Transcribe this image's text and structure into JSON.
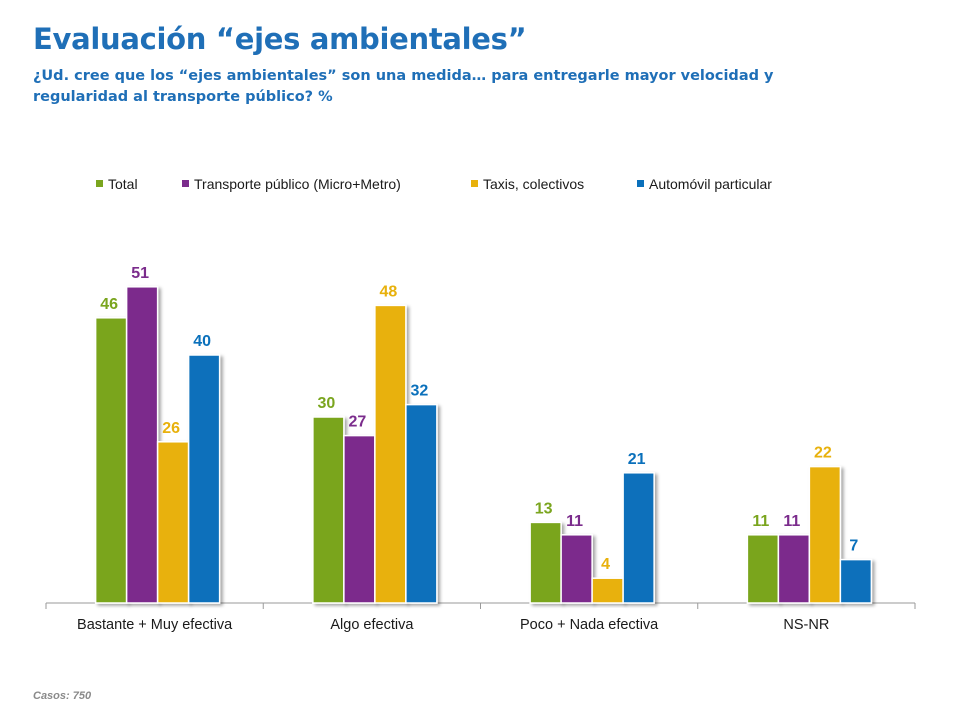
{
  "title": "Evaluación “ejes ambientales”",
  "subtitle": "¿Ud. cree que los “ejes ambientales” son una medida… para entregarle mayor velocidad y regularidad al transporte público? %",
  "footnote": "Casos:  750",
  "chart_data": {
    "type": "bar",
    "categories": [
      "Bastante + Muy efectiva",
      "Algo efectiva",
      "Poco + Nada efectiva",
      "NS-NR"
    ],
    "series": [
      {
        "name": "Total",
        "color": "#7aa51e",
        "values": [
          46,
          30,
          13,
          11
        ]
      },
      {
        "name": "Transporte público (Micro+Metro)",
        "color": "#7b2c8c",
        "values": [
          51,
          27,
          11,
          11
        ]
      },
      {
        "name": "Taxis, colectivos",
        "color": "#e8b10c",
        "values": [
          26,
          48,
          4,
          22
        ]
      },
      {
        "name": "Automóvil particular",
        "color": "#0a70bb",
        "values": [
          40,
          32,
          21,
          7
        ]
      }
    ],
    "ylim": [
      0,
      60
    ],
    "legend": "top",
    "grid": false,
    "xlabel": "",
    "ylabel": ""
  }
}
